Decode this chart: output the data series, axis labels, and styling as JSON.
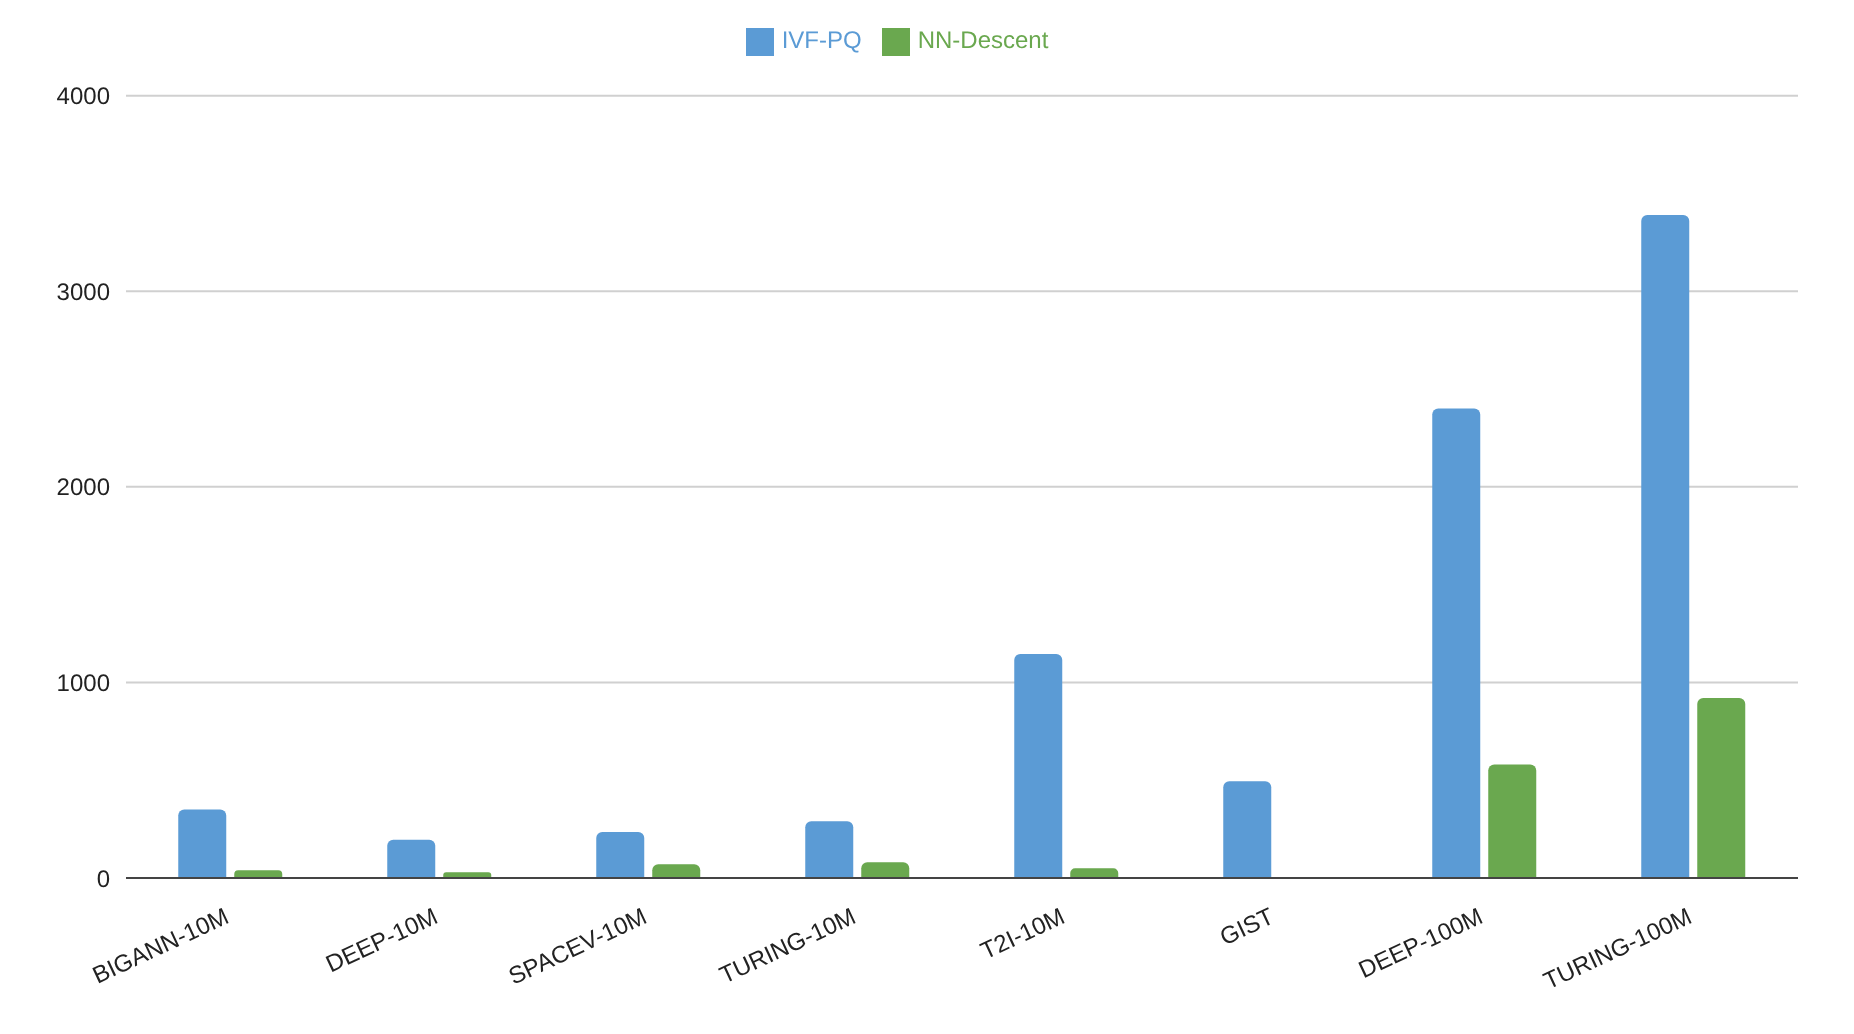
{
  "chart_data": {
    "type": "bar",
    "categories": [
      "BIGANN-10M",
      "DEEP-10M",
      "SPACEV-10M",
      "TURING-10M",
      "T2I-10M",
      "GIST",
      "DEEP-100M",
      "TURING-100M"
    ],
    "series": [
      {
        "name": "IVF-PQ",
        "color": "#5b9bd5",
        "values": [
          350,
          195,
          235,
          290,
          1145,
          495,
          2400,
          3390
        ]
      },
      {
        "name": "NN-Descent",
        "color": "#6aa84f",
        "values": [
          40,
          30,
          70,
          80,
          50,
          null,
          580,
          920
        ]
      }
    ],
    "ylim": [
      0,
      4000
    ],
    "yticks": [
      0,
      1000,
      2000,
      3000,
      4000
    ],
    "grid": "y",
    "legend": "top"
  }
}
